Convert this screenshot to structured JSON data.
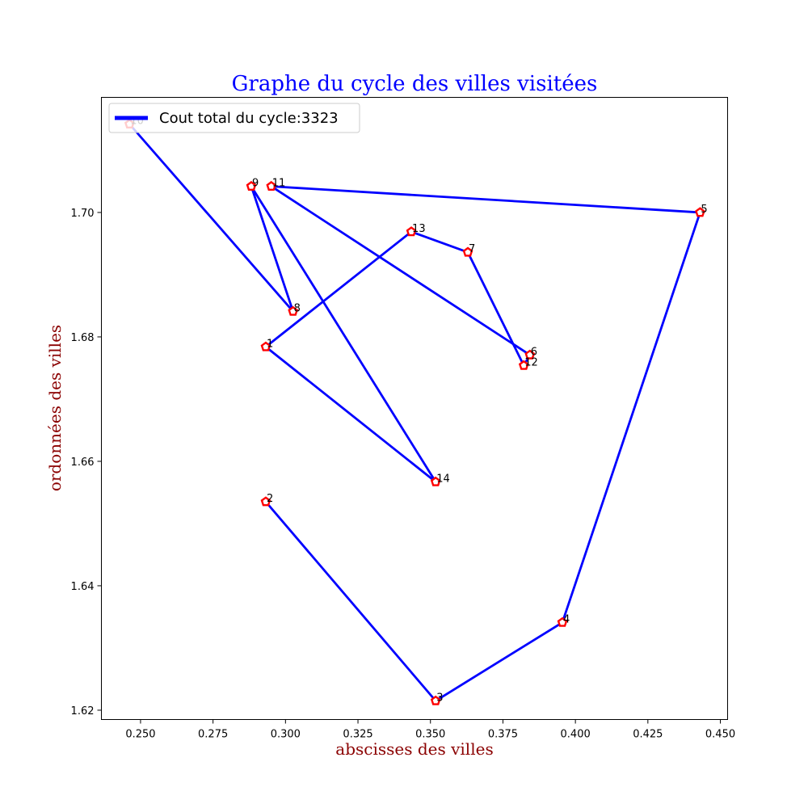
{
  "chart_data": {
    "type": "line",
    "title": "Graphe du cycle des villes visitées",
    "xlabel": "abscisses des villes",
    "ylabel": "ordonnées des villes",
    "xlim": [
      0.2365,
      0.4525
    ],
    "ylim": [
      1.6185,
      1.7185
    ],
    "xticks": [
      0.25,
      0.275,
      0.3,
      0.325,
      0.35,
      0.375,
      0.4,
      0.425,
      0.45
    ],
    "xtick_labels": [
      "0.250",
      "0.275",
      "0.300",
      "0.325",
      "0.350",
      "0.375",
      "0.400",
      "0.425",
      "0.450"
    ],
    "yticks": [
      1.62,
      1.64,
      1.66,
      1.68,
      1.7
    ],
    "ytick_labels": [
      "1.62",
      "1.64",
      "1.66",
      "1.68",
      "1.70"
    ],
    "grid": false,
    "legend": {
      "position": "top-left",
      "entries": [
        "Cout total du cycle:3323"
      ]
    },
    "points": [
      {
        "label": "1",
        "x": 0.2932,
        "y": 1.6784
      },
      {
        "label": "2",
        "x": 0.2932,
        "y": 1.6535
      },
      {
        "label": "3",
        "x": 0.3518,
        "y": 1.6215
      },
      {
        "label": "4",
        "x": 0.3955,
        "y": 1.6341
      },
      {
        "label": "5",
        "x": 0.443,
        "y": 1.7
      },
      {
        "label": "6",
        "x": 0.3843,
        "y": 1.6771
      },
      {
        "label": "7",
        "x": 0.3629,
        "y": 1.6936
      },
      {
        "label": "8",
        "x": 0.3026,
        "y": 1.6841
      },
      {
        "label": "9",
        "x": 0.2882,
        "y": 1.7042
      },
      {
        "label": "10",
        "x": 0.2462,
        "y": 1.7142
      },
      {
        "label": "11",
        "x": 0.2951,
        "y": 1.7042
      },
      {
        "label": "12",
        "x": 0.3822,
        "y": 1.6754
      },
      {
        "label": "13",
        "x": 0.3434,
        "y": 1.6969
      },
      {
        "label": "14",
        "x": 0.3518,
        "y": 1.6567
      }
    ],
    "path": [
      "2",
      "3",
      "4",
      "5",
      "11",
      "6",
      "12",
      "7",
      "13",
      "1",
      "14",
      "9",
      "8",
      "10"
    ],
    "series": [
      {
        "name": "Cout total du cycle:3323"
      }
    ],
    "colors": {
      "line": "#0000ff",
      "marker_edge": "#ff0000",
      "marker_fill": "#ffffff",
      "title": "#0000ff",
      "axis_label": "#8b0000"
    }
  }
}
